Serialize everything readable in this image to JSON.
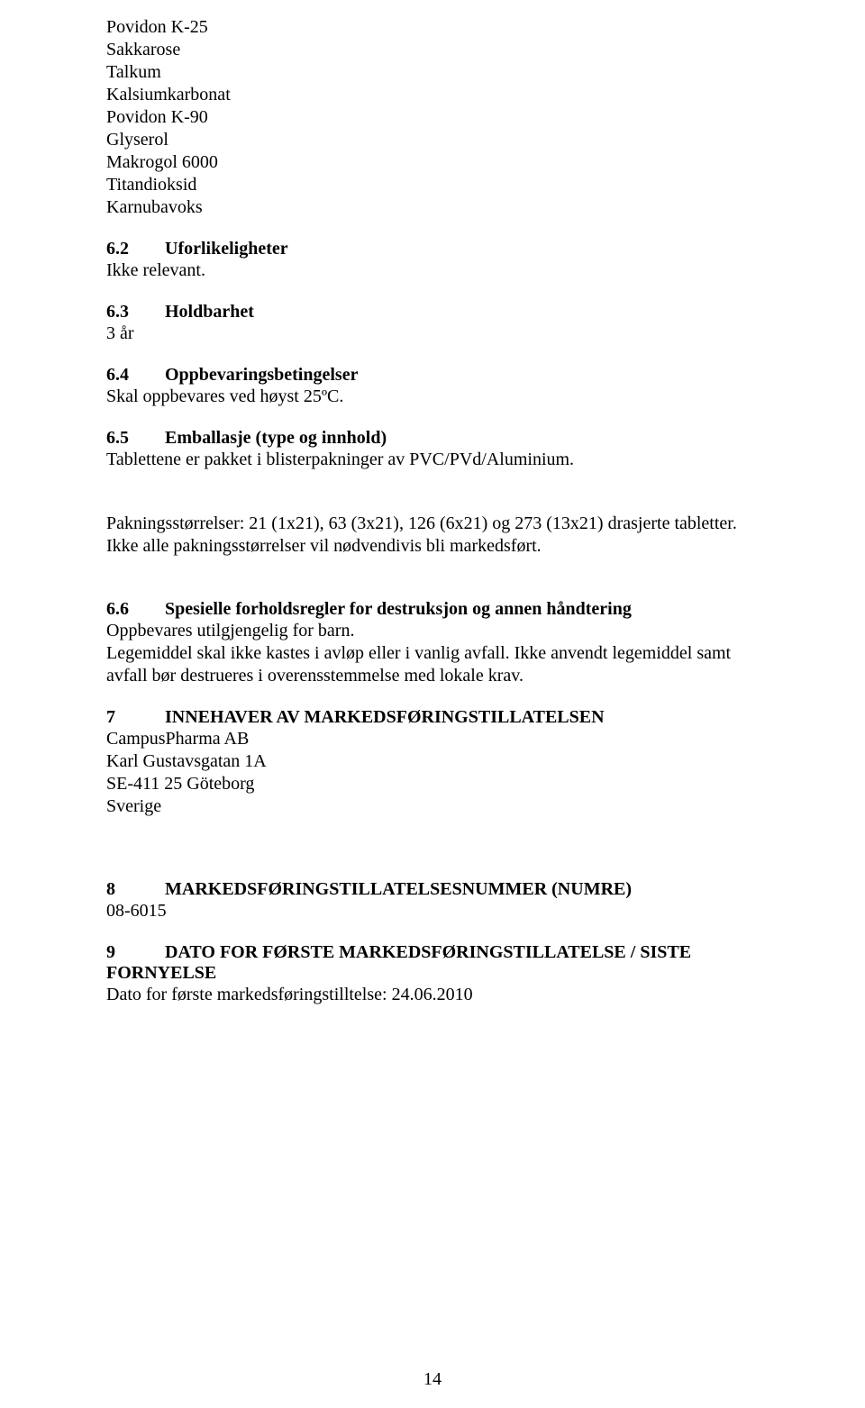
{
  "ingredients": [
    "Povidon K-25",
    "Sakkarose",
    "Talkum",
    "Kalsiumkarbonat",
    "Povidon K-90",
    "Glyserol",
    "Makrogol 6000",
    "Titandioksid",
    "Karnubavoks"
  ],
  "sec62": {
    "num": "6.2",
    "title": "Uforlikeligheter",
    "body": "Ikke relevant."
  },
  "sec63": {
    "num": "6.3",
    "title": "Holdbarhet",
    "body": "3 år"
  },
  "sec64": {
    "num": "6.4",
    "title": "Oppbevaringsbetingelser",
    "body": "Skal oppbevares ved høyst 25ºC."
  },
  "sec65": {
    "num": "6.5",
    "title": "Emballasje (type og innhold)",
    "body1": "Tablettene er pakket i blisterpakninger av PVC/PVd/Aluminium.",
    "body2": "Pakningsstørrelser: 21 (1x21), 63 (3x21), 126 (6x21) og 273 (13x21) drasjerte tabletter.",
    "body3": "Ikke alle pakningsstørrelser vil nødvendivis bli markedsført."
  },
  "sec66": {
    "num": "6.6",
    "title": "Spesielle forholdsregler for destruksjon og annen håndtering",
    "body1": "Oppbevares utilgjengelig for barn.",
    "body2": "Legemiddel skal ikke kastes i avløp eller i vanlig avfall. Ikke anvendt legemiddel samt avfall bør destrueres i overensstemmelse med lokale krav."
  },
  "sec7": {
    "num": "7",
    "title": "INNEHAVER AV MARKEDSFØRINGSTILLATELSEN",
    "lines": [
      "CampusPharma AB",
      "Karl Gustavsgatan 1A",
      "SE-411 25 Göteborg",
      "Sverige"
    ]
  },
  "sec8": {
    "num": "8",
    "title": "MARKEDSFØRINGSTILLATELSESNUMMER (NUMRE)",
    "body": "08-6015"
  },
  "sec9": {
    "num": "9",
    "title": "DATO FOR FØRSTE MARKEDSFØRINGSTILLATELSE / SISTE FORNYELSE",
    "body": "Dato for første markedsføringstilltelse: 24.06.2010"
  },
  "pageNumber": "14"
}
